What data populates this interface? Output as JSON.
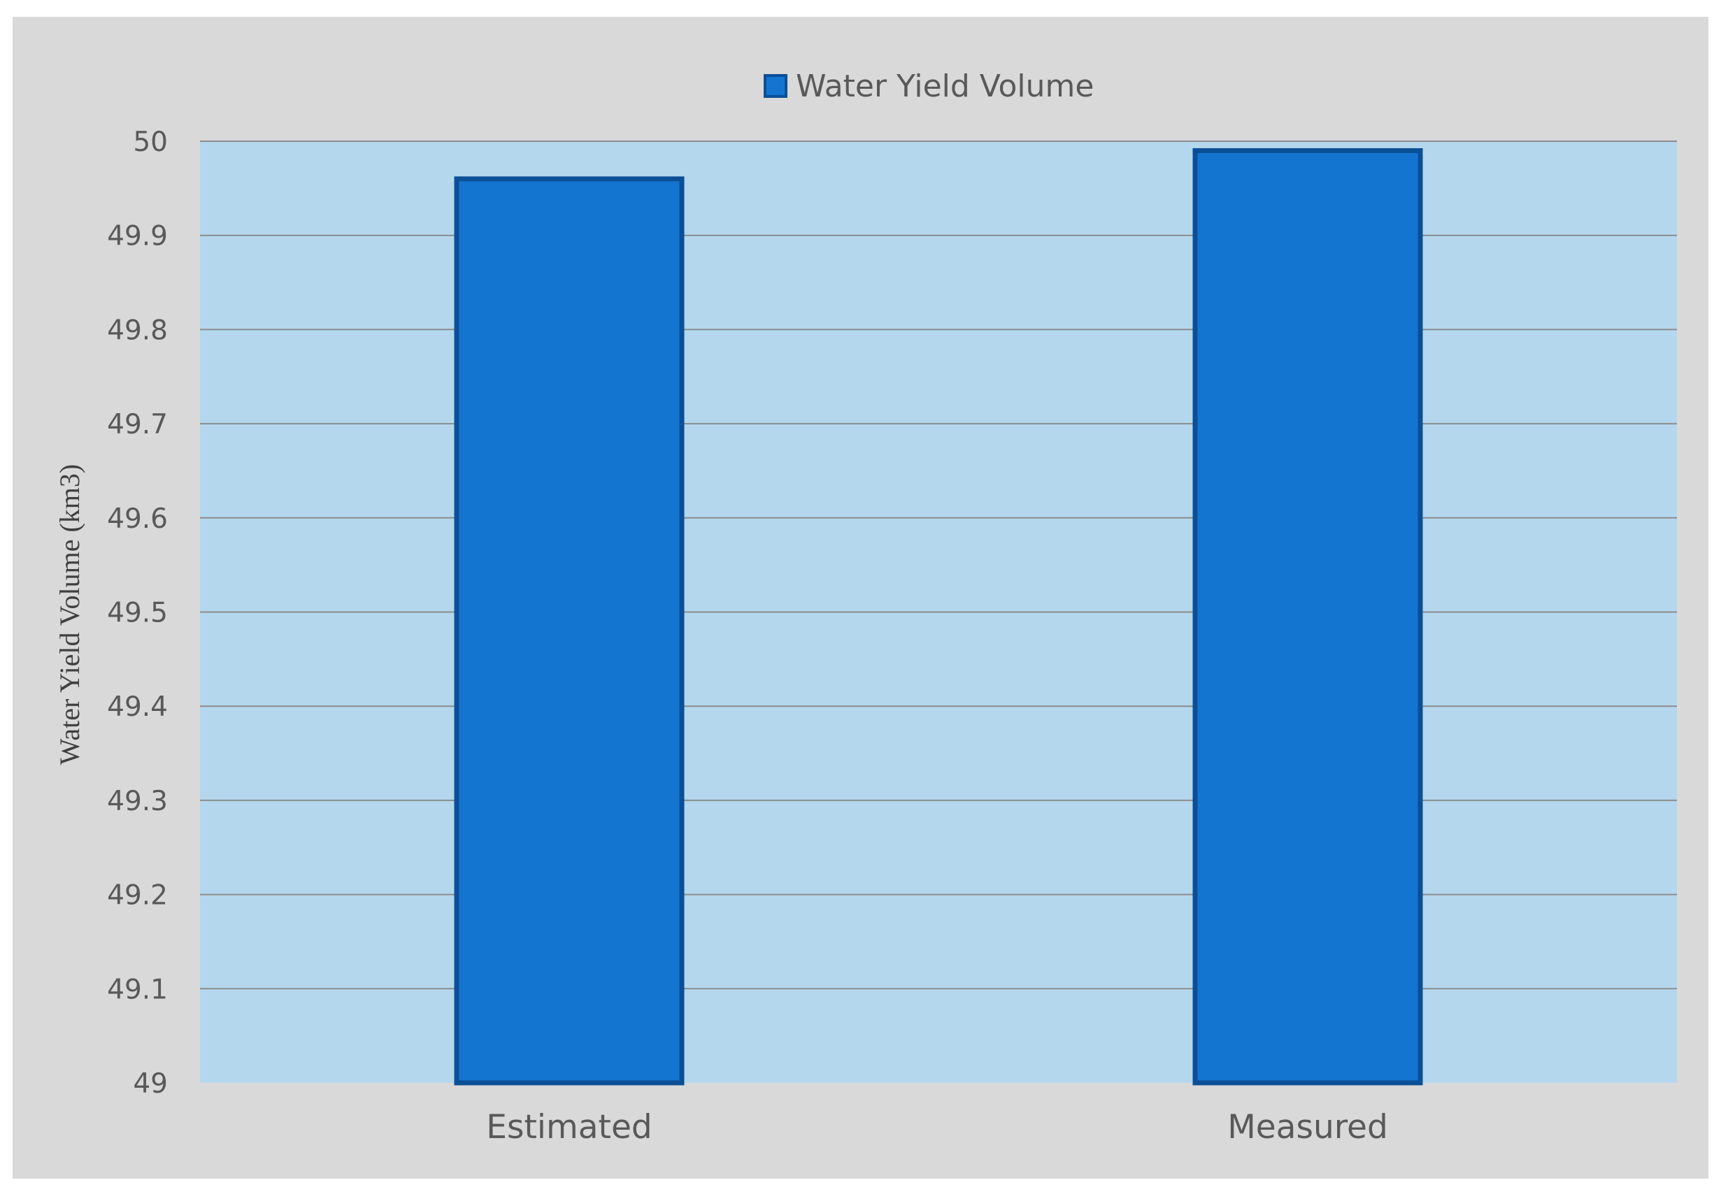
{
  "chart_data": {
    "type": "bar",
    "categories": [
      "Estimated",
      "Measured"
    ],
    "series": [
      {
        "name": "Water Yield Volume",
        "values": [
          49.96,
          49.99
        ]
      }
    ],
    "xlabel": "",
    "ylabel": "Water Yield Volume (km3)",
    "ylim": [
      49,
      50
    ],
    "yticks": [
      "49",
      "49.1",
      "49.2",
      "49.3",
      "49.4",
      "49.5",
      "49.6",
      "49.7",
      "49.8",
      "49.9",
      "50"
    ],
    "grid": true,
    "legend_position": "top-center",
    "colors": {
      "bar": "#1475d1",
      "bar_edge": "#0b4f96",
      "plot_background": "#b4d7ee",
      "chart_background": "#d9d9d9",
      "gridline": "#8c8c8c"
    }
  }
}
